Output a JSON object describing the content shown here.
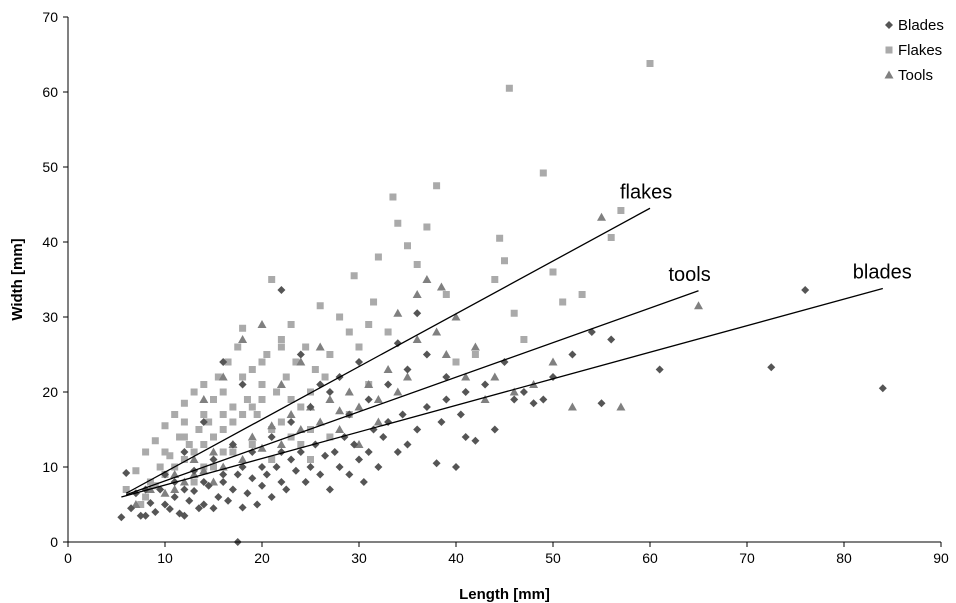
{
  "chart_data": {
    "type": "scatter",
    "title": "",
    "xlabel": "Length [mm]",
    "ylabel": "Width [mm]",
    "xlim": [
      0,
      90
    ],
    "ylim": [
      0,
      70
    ],
    "xticks": [
      0,
      10,
      20,
      30,
      40,
      50,
      60,
      70,
      80,
      90
    ],
    "yticks": [
      0,
      10,
      20,
      30,
      40,
      50,
      60,
      70
    ],
    "grid": false,
    "legend_position": "top-right",
    "series": [
      {
        "name": "Blades",
        "marker": "diamond",
        "color": "#555555",
        "points": [
          [
            5.5,
            3.3
          ],
          [
            6,
            9.2
          ],
          [
            6.5,
            4.5
          ],
          [
            7,
            6.5
          ],
          [
            7.5,
            3.5
          ],
          [
            8,
            3.5
          ],
          [
            8.5,
            5.2
          ],
          [
            9,
            4
          ],
          [
            9.5,
            7
          ],
          [
            10,
            5
          ],
          [
            10.5,
            4.4
          ],
          [
            11,
            6
          ],
          [
            11.5,
            3.8
          ],
          [
            12,
            3.5
          ],
          [
            12.5,
            5.5
          ],
          [
            13,
            6.8
          ],
          [
            13.5,
            4.5
          ],
          [
            14,
            5
          ],
          [
            14.5,
            7.5
          ],
          [
            15,
            4.5
          ],
          [
            15.5,
            6
          ],
          [
            16,
            8
          ],
          [
            16.5,
            5.5
          ],
          [
            17,
            7
          ],
          [
            17.5,
            9
          ],
          [
            18,
            4.6
          ],
          [
            18.5,
            6.5
          ],
          [
            19,
            8.5
          ],
          [
            19.5,
            5
          ],
          [
            20,
            7.5
          ],
          [
            20.5,
            9
          ],
          [
            21,
            6
          ],
          [
            21.5,
            10
          ],
          [
            22,
            8
          ],
          [
            22.5,
            7
          ],
          [
            23,
            11
          ],
          [
            23.5,
            9.5
          ],
          [
            24,
            12
          ],
          [
            24.5,
            8
          ],
          [
            25,
            10
          ],
          [
            25.5,
            13
          ],
          [
            26,
            9
          ],
          [
            26.5,
            11.5
          ],
          [
            27,
            7
          ],
          [
            27.5,
            12
          ],
          [
            28,
            10
          ],
          [
            28.5,
            14
          ],
          [
            29,
            9
          ],
          [
            29.5,
            13
          ],
          [
            30,
            11
          ],
          [
            30.5,
            8
          ],
          [
            31,
            12
          ],
          [
            31.5,
            15
          ],
          [
            32,
            10
          ],
          [
            32.5,
            14
          ],
          [
            33,
            16
          ],
          [
            34,
            12
          ],
          [
            34.5,
            17
          ],
          [
            35,
            13
          ],
          [
            36,
            15
          ],
          [
            37,
            18
          ],
          [
            38,
            10.5
          ],
          [
            38.5,
            16
          ],
          [
            39,
            19
          ],
          [
            40,
            10
          ],
          [
            40.5,
            17
          ],
          [
            41,
            14
          ],
          [
            42,
            13.5
          ],
          [
            43,
            21
          ],
          [
            44,
            15
          ],
          [
            45,
            24
          ],
          [
            46,
            19
          ],
          [
            47,
            20
          ],
          [
            48,
            18.5
          ],
          [
            49,
            19
          ],
          [
            50,
            22
          ],
          [
            52,
            25
          ],
          [
            54,
            28
          ],
          [
            55,
            18.5
          ],
          [
            56,
            27
          ],
          [
            61,
            23
          ],
          [
            72.5,
            23.3
          ],
          [
            76,
            33.6
          ],
          [
            84,
            20.5
          ],
          [
            17.5,
            0
          ],
          [
            22,
            33.6
          ],
          [
            16,
            24
          ],
          [
            18,
            21
          ],
          [
            14,
            16
          ],
          [
            12,
            12
          ],
          [
            10,
            9
          ],
          [
            8,
            7
          ],
          [
            13,
            9.5
          ],
          [
            15,
            11
          ],
          [
            17,
            13
          ],
          [
            19,
            12
          ],
          [
            21,
            14
          ],
          [
            23,
            16
          ],
          [
            25,
            18
          ],
          [
            27,
            20
          ],
          [
            29,
            17
          ],
          [
            31,
            19
          ],
          [
            33,
            21
          ],
          [
            35,
            23
          ],
          [
            37,
            25
          ],
          [
            39,
            22
          ],
          [
            41,
            20
          ],
          [
            36,
            30.5
          ],
          [
            34,
            26.5
          ],
          [
            30,
            24
          ],
          [
            28,
            22
          ],
          [
            26,
            21
          ],
          [
            24,
            25
          ],
          [
            20,
            10
          ],
          [
            22,
            12
          ],
          [
            18,
            10
          ],
          [
            16,
            9
          ],
          [
            14,
            8
          ],
          [
            12,
            7
          ],
          [
            11,
            8
          ]
        ]
      },
      {
        "name": "Flakes",
        "marker": "square",
        "color": "#aaaaaa",
        "points": [
          [
            6,
            7
          ],
          [
            7,
            9.5
          ],
          [
            7.5,
            5
          ],
          [
            8,
            12
          ],
          [
            8.5,
            8
          ],
          [
            9,
            13.5
          ],
          [
            9.5,
            10
          ],
          [
            10,
            15.5
          ],
          [
            10.5,
            11.5
          ],
          [
            11,
            17
          ],
          [
            11.5,
            14
          ],
          [
            12,
            18.5
          ],
          [
            12.5,
            13
          ],
          [
            13,
            20
          ],
          [
            13.5,
            15
          ],
          [
            14,
            21
          ],
          [
            14.5,
            16
          ],
          [
            15,
            19
          ],
          [
            15.5,
            22
          ],
          [
            16,
            17
          ],
          [
            16.5,
            24
          ],
          [
            17,
            18
          ],
          [
            17.5,
            26
          ],
          [
            18,
            28.5
          ],
          [
            18.5,
            19
          ],
          [
            19,
            23
          ],
          [
            19.5,
            17
          ],
          [
            20,
            21
          ],
          [
            20.5,
            25
          ],
          [
            21,
            35
          ],
          [
            21.5,
            20
          ],
          [
            22,
            27
          ],
          [
            22.5,
            22
          ],
          [
            23,
            29
          ],
          [
            23.5,
            24
          ],
          [
            24,
            18
          ],
          [
            24.5,
            26
          ],
          [
            25,
            20
          ],
          [
            25.5,
            23
          ],
          [
            26,
            31.5
          ],
          [
            26.5,
            22
          ],
          [
            27,
            25
          ],
          [
            28,
            30
          ],
          [
            29,
            28
          ],
          [
            29.5,
            35.5
          ],
          [
            30,
            26
          ],
          [
            31,
            29
          ],
          [
            31.5,
            32
          ],
          [
            32,
            38
          ],
          [
            33,
            28
          ],
          [
            33.5,
            46
          ],
          [
            34,
            42.5
          ],
          [
            35,
            39.5
          ],
          [
            36,
            37
          ],
          [
            37,
            42
          ],
          [
            38,
            47.5
          ],
          [
            39,
            33
          ],
          [
            40,
            24
          ],
          [
            42,
            25
          ],
          [
            44,
            35
          ],
          [
            44.5,
            40.5
          ],
          [
            45,
            37.5
          ],
          [
            45.5,
            60.5
          ],
          [
            46,
            30.5
          ],
          [
            47,
            27
          ],
          [
            49,
            49.2
          ],
          [
            50,
            36
          ],
          [
            51,
            32
          ],
          [
            53,
            33
          ],
          [
            56,
            40.6
          ],
          [
            57,
            44.2
          ],
          [
            60,
            63.8
          ],
          [
            8,
            6
          ],
          [
            9,
            7.5
          ],
          [
            10,
            9
          ],
          [
            11,
            10
          ],
          [
            12,
            11
          ],
          [
            13,
            12
          ],
          [
            14,
            13
          ],
          [
            15,
            14
          ],
          [
            16,
            15
          ],
          [
            17,
            16
          ],
          [
            18,
            17
          ],
          [
            19,
            18
          ],
          [
            20,
            19
          ],
          [
            21,
            15
          ],
          [
            22,
            16
          ],
          [
            23,
            14
          ],
          [
            24,
            13
          ],
          [
            25,
            15
          ],
          [
            12,
            14
          ],
          [
            14,
            17
          ],
          [
            16,
            20
          ],
          [
            18,
            22
          ],
          [
            20,
            24
          ],
          [
            22,
            26
          ],
          [
            13,
            8
          ],
          [
            15,
            10
          ],
          [
            17,
            12
          ],
          [
            19,
            13
          ],
          [
            21,
            11
          ],
          [
            23,
            19
          ],
          [
            25,
            11
          ],
          [
            27,
            14
          ],
          [
            29,
            17
          ],
          [
            31,
            21
          ],
          [
            10,
            12
          ],
          [
            12,
            16
          ],
          [
            14,
            10
          ],
          [
            16,
            12
          ]
        ]
      },
      {
        "name": "Tools",
        "marker": "triangle",
        "color": "#808080",
        "points": [
          [
            7,
            5
          ],
          [
            8.5,
            7
          ],
          [
            10,
            6.5
          ],
          [
            11,
            9
          ],
          [
            12,
            8
          ],
          [
            13,
            11
          ],
          [
            14,
            9.5
          ],
          [
            15,
            12
          ],
          [
            16,
            10
          ],
          [
            17,
            13
          ],
          [
            18,
            11
          ],
          [
            19,
            14
          ],
          [
            20,
            12.5
          ],
          [
            21,
            15.5
          ],
          [
            22,
            13
          ],
          [
            23,
            17
          ],
          [
            24,
            15
          ],
          [
            25,
            18
          ],
          [
            26,
            16
          ],
          [
            27,
            19
          ],
          [
            28,
            17.5
          ],
          [
            29,
            20
          ],
          [
            30,
            18
          ],
          [
            31,
            21
          ],
          [
            32,
            19
          ],
          [
            33,
            23
          ],
          [
            34,
            20
          ],
          [
            35,
            22
          ],
          [
            36,
            27
          ],
          [
            37,
            35
          ],
          [
            38,
            28
          ],
          [
            38.5,
            34
          ],
          [
            39,
            25
          ],
          [
            40,
            30
          ],
          [
            41,
            22
          ],
          [
            42,
            26
          ],
          [
            43,
            19
          ],
          [
            44,
            22
          ],
          [
            46,
            20
          ],
          [
            48,
            21
          ],
          [
            50,
            24
          ],
          [
            52,
            18
          ],
          [
            55,
            43.3
          ],
          [
            57,
            18
          ],
          [
            65,
            31.5
          ],
          [
            20,
            29
          ],
          [
            18,
            27
          ],
          [
            16,
            22
          ],
          [
            14,
            19
          ],
          [
            22,
            21
          ],
          [
            24,
            24
          ],
          [
            26,
            26
          ],
          [
            28,
            15
          ],
          [
            30,
            13
          ],
          [
            32,
            16
          ],
          [
            34,
            30.5
          ],
          [
            36,
            33
          ],
          [
            11,
            7
          ],
          [
            13,
            9
          ],
          [
            15,
            8
          ]
        ]
      }
    ],
    "trendlines": [
      {
        "label": "flakes",
        "x": [
          6,
          60
        ],
        "y": [
          6.5,
          44.5
        ]
      },
      {
        "label": "tools",
        "x": [
          6,
          65
        ],
        "y": [
          6.3,
          33.5
        ]
      },
      {
        "label": "blades",
        "x": [
          5.5,
          84
        ],
        "y": [
          6,
          33.8
        ]
      }
    ]
  }
}
